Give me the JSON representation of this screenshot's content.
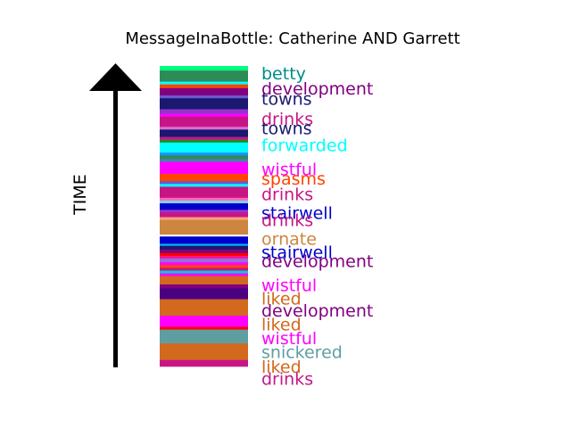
{
  "chart_data": {
    "type": "bar",
    "title": "MessageInaBottle: Catherine AND Garrett",
    "ylabel": "TIME",
    "stripes": [
      {
        "color": "#00ff7f",
        "duration": 0.5
      },
      {
        "color": "#2e8b57",
        "duration": 1.2
      },
      {
        "color": "#00ffff",
        "duration": 0.3
      },
      {
        "color": "#ff4500",
        "duration": 0.4
      },
      {
        "color": "#800080",
        "duration": 0.8
      },
      {
        "color": "#6a5acd",
        "duration": 0.3
      },
      {
        "color": "#191970",
        "duration": 1.2
      },
      {
        "color": "#9932cc",
        "duration": 0.5
      },
      {
        "color": "#ff00ff",
        "duration": 0.3
      },
      {
        "color": "#c71585",
        "duration": 1.1
      },
      {
        "color": "#da70d6",
        "duration": 0.3
      },
      {
        "color": "#191970",
        "duration": 0.8
      },
      {
        "color": "#c71585",
        "duration": 0.3
      },
      {
        "color": "#228b22",
        "duration": 0.3
      },
      {
        "color": "#00ffff",
        "duration": 1.1
      },
      {
        "color": "#1e90ff",
        "duration": 0.3
      },
      {
        "color": "#2e8b57",
        "duration": 0.4
      },
      {
        "color": "#4682b4",
        "duration": 0.3
      },
      {
        "color": "#ff00ff",
        "duration": 1.3
      },
      {
        "color": "#ff4500",
        "duration": 0.8
      },
      {
        "color": "#6a5acd",
        "duration": 0.3
      },
      {
        "color": "#00ffff",
        "duration": 0.3
      },
      {
        "color": "#c71585",
        "duration": 1.2
      },
      {
        "color": "#ff69b4",
        "duration": 0.3
      },
      {
        "color": "#87ceeb",
        "duration": 0.3
      },
      {
        "color": "#0000cd",
        "duration": 0.7
      },
      {
        "color": "#9932cc",
        "duration": 0.3
      },
      {
        "color": "#c71585",
        "duration": 0.5
      },
      {
        "color": "#ffa07a",
        "duration": 0.3
      },
      {
        "color": "#cd853f",
        "duration": 1.6
      },
      {
        "color": "#ffffff",
        "duration": 0.2
      },
      {
        "color": "#0000cd",
        "duration": 0.8
      },
      {
        "color": "#00bfff",
        "duration": 0.2
      },
      {
        "color": "#191970",
        "duration": 0.4
      },
      {
        "color": "#800080",
        "duration": 0.4
      },
      {
        "color": "#ff0000",
        "duration": 0.3
      },
      {
        "color": "#ff1493",
        "duration": 0.3
      },
      {
        "color": "#9370db",
        "duration": 0.4
      },
      {
        "color": "#ff00ff",
        "duration": 0.3
      },
      {
        "color": "#ff4500",
        "duration": 0.3
      },
      {
        "color": "#c71585",
        "duration": 0.3
      },
      {
        "color": "#00ced1",
        "duration": 0.3
      },
      {
        "color": "#ff00ff",
        "duration": 0.3
      },
      {
        "color": "#d2691e",
        "duration": 0.9
      },
      {
        "color": "#800080",
        "duration": 0.4
      },
      {
        "color": "#4b0082",
        "duration": 1.2
      },
      {
        "color": "#d2691e",
        "duration": 1.8
      },
      {
        "color": "#ff00ff",
        "duration": 1.2
      },
      {
        "color": "#ff0000",
        "duration": 0.3
      },
      {
        "color": "#5f9ea0",
        "duration": 1.5
      },
      {
        "color": "#d2691e",
        "duration": 1.8
      },
      {
        "color": "#c71585",
        "duration": 0.7
      }
    ],
    "words": [
      {
        "text": "betty",
        "color": "#008b8b",
        "time": 0.75
      },
      {
        "text": "development",
        "color": "#800080",
        "time": 2.4
      },
      {
        "text": "towns",
        "color": "#191970",
        "time": 3.55
      },
      {
        "text": "drinks",
        "color": "#c71585",
        "time": 5.7
      },
      {
        "text": "towns",
        "color": "#191970",
        "time": 6.7
      },
      {
        "text": "forwarded",
        "color": "#00ffff",
        "time": 8.55
      },
      {
        "text": "wistful",
        "color": "#ff00ff",
        "time": 11.15
      },
      {
        "text": "spasms",
        "color": "#ff4500",
        "time": 12.2
      },
      {
        "text": "drinks",
        "color": "#c71585",
        "time": 13.9
      },
      {
        "text": "stairwell",
        "color": "#0000cd",
        "time": 15.9
      },
      {
        "text": "drinks",
        "color": "#c71585",
        "time": 16.7
      },
      {
        "text": "ornate",
        "color": "#cd853f",
        "time": 18.7
      },
      {
        "text": "stairwell",
        "color": "#0000cd",
        "time": 20.15
      },
      {
        "text": "development",
        "color": "#800080",
        "time": 21.15
      },
      {
        "text": "wistful",
        "color": "#ff00ff",
        "time": 23.75
      },
      {
        "text": "liked",
        "color": "#d2691e",
        "time": 25.2
      },
      {
        "text": "development",
        "color": "#800080",
        "time": 26.5
      },
      {
        "text": "liked",
        "color": "#d2691e",
        "time": 28.0
      },
      {
        "text": "wistful",
        "color": "#ff00ff",
        "time": 29.5
      },
      {
        "text": "snickered",
        "color": "#5f9ea0",
        "time": 31.0
      },
      {
        "text": "liked",
        "color": "#d2691e",
        "time": 32.6
      },
      {
        "text": "drinks",
        "color": "#c71585",
        "time": 33.9
      }
    ]
  }
}
